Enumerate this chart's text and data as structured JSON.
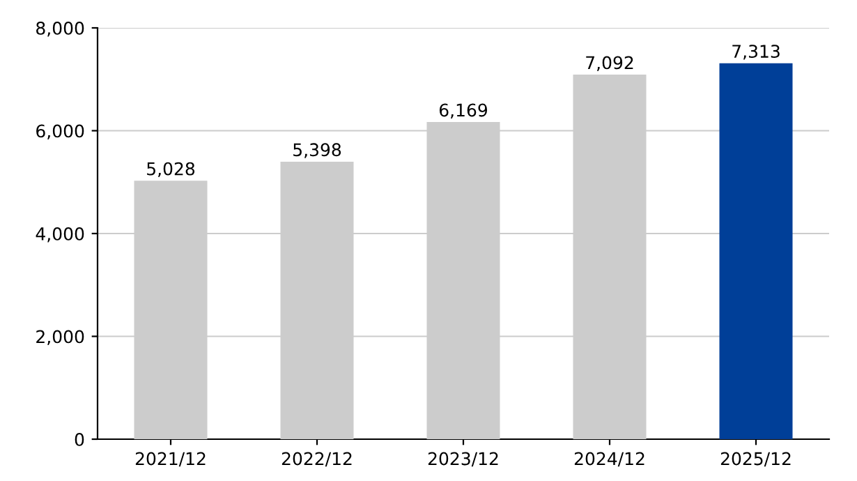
{
  "chart_data": {
    "type": "bar",
    "categories": [
      "2021/12",
      "2022/12",
      "2023/12",
      "2024/12",
      "2025/12"
    ],
    "values": [
      5028,
      5398,
      6169,
      7092,
      7313
    ],
    "colors": [
      "#cccccc",
      "#cccccc",
      "#cccccc",
      "#cccccc",
      "#003f98"
    ],
    "ylim": [
      0,
      8000
    ],
    "yticks": [
      {
        "value": 0,
        "label": "0"
      },
      {
        "value": 2000,
        "label": "2,000"
      },
      {
        "value": 4000,
        "label": "4,000"
      },
      {
        "value": 6000,
        "label": "6,000"
      },
      {
        "value": 8000,
        "label": "8,000"
      }
    ],
    "value_labels": [
      "5,028",
      "5,398",
      "6,169",
      "7,092",
      "7,313"
    ],
    "grid": "y"
  }
}
